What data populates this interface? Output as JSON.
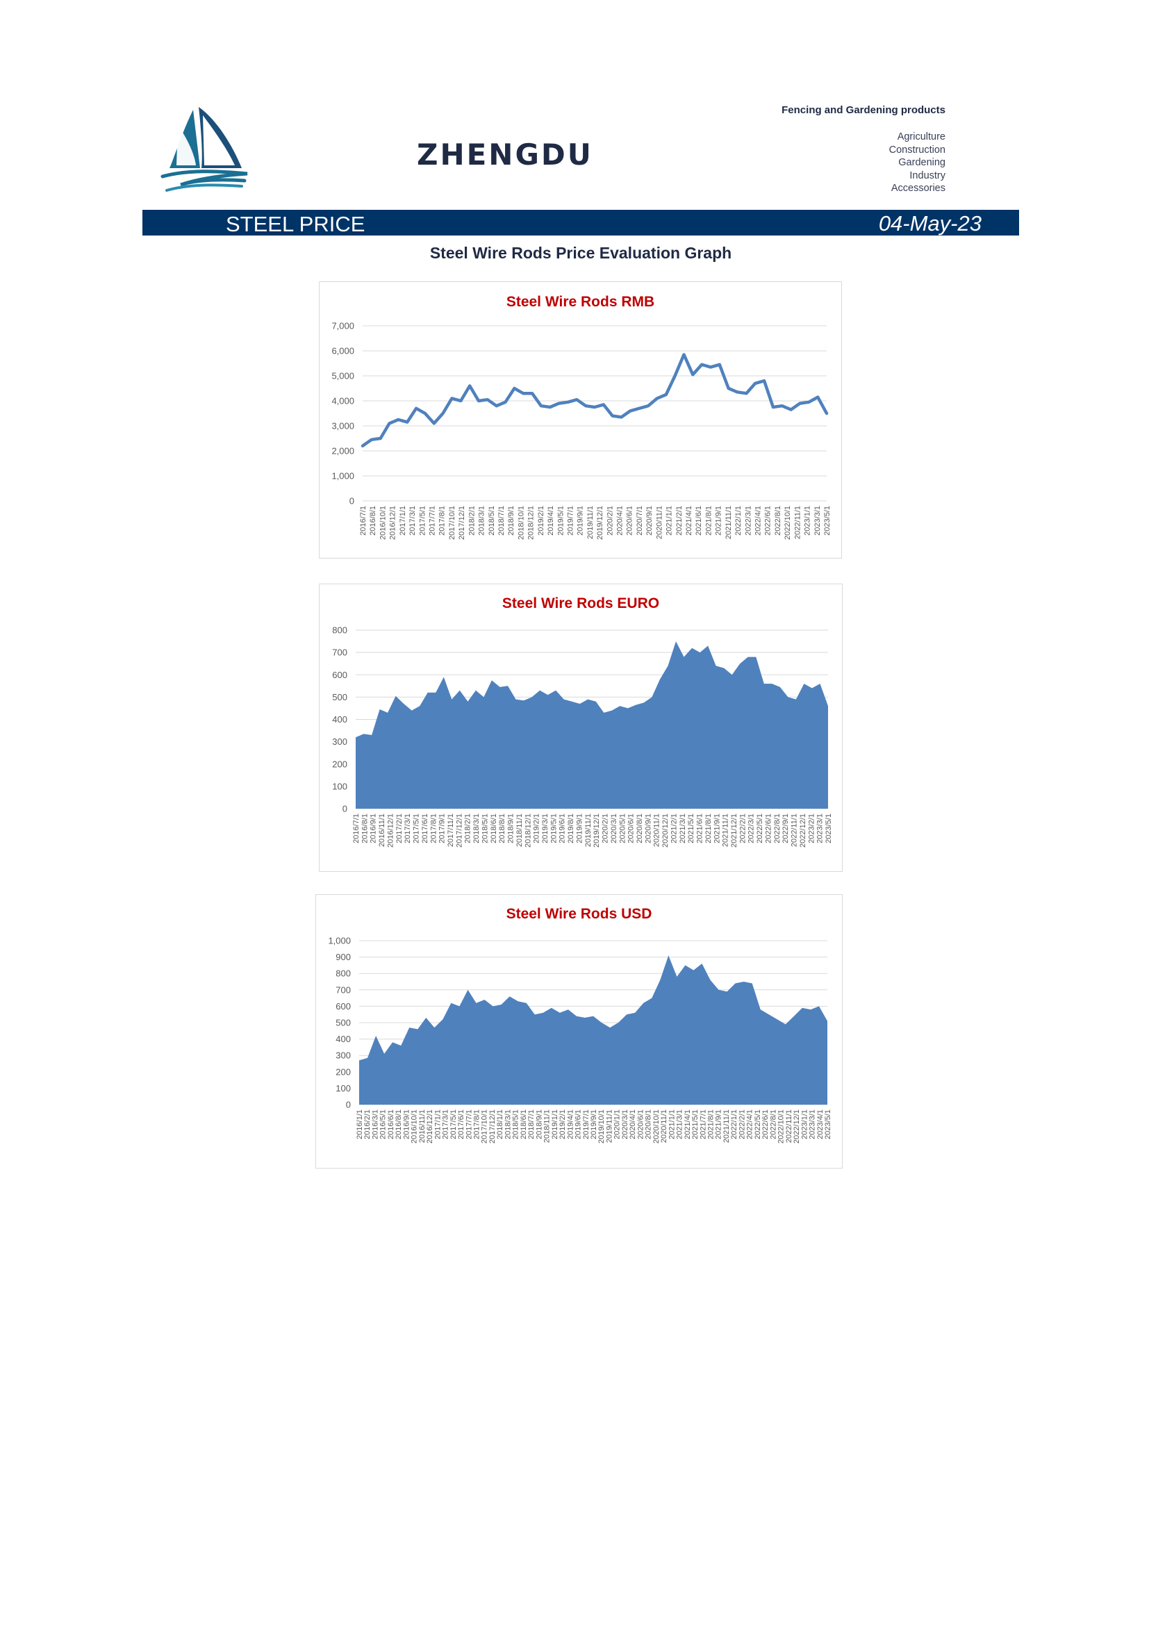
{
  "header": {
    "brand": "ZHENGDU",
    "tagline": "Fencing and Gardening products",
    "categories": [
      "Agriculture",
      "Construction",
      "Gardening",
      "Industry",
      "Accessories"
    ],
    "logo_icon": "sailboat-logo-icon"
  },
  "banner": {
    "title": "STEEL PRICE",
    "date": "04-May-23",
    "color": "#003366"
  },
  "page": {
    "graph_title": "Steel Wire Rods Price Evaluation Graph"
  },
  "colors": {
    "series": "#4f81bd",
    "title": "#c00000",
    "grid": "#d9d9d9"
  },
  "chart_data": [
    {
      "type": "line",
      "title": "Steel Wire Rods RMB",
      "ylim": [
        0,
        7000
      ],
      "yticks": [
        "0",
        "1,000",
        "2,000",
        "3,000",
        "4,000",
        "5,000",
        "6,000",
        "7,000"
      ],
      "grid": true,
      "x_start": "2016/7",
      "x_end": "2023/5",
      "x_ticks": [
        "2016/7/1",
        "2016/8/1",
        "2016/10/1",
        "2016/12/1",
        "2017/1/1",
        "2017/3/1",
        "2017/5/1",
        "2017/7/1",
        "2017/8/1",
        "2017/10/1",
        "2017/12/1",
        "2018/2/1",
        "2018/3/1",
        "2018/5/1",
        "2018/7/1",
        "2018/9/1",
        "2018/10/1",
        "2018/12/1",
        "2019/2/1",
        "2019/4/1",
        "2019/5/1",
        "2019/7/1",
        "2019/9/1",
        "2019/11/1",
        "2019/12/1",
        "2020/2/1",
        "2020/4/1",
        "2020/6/1",
        "2020/7/1",
        "2020/9/1",
        "2020/11/1",
        "2021/1/1",
        "2021/2/1",
        "2021/4/1",
        "2021/6/1",
        "2021/8/1",
        "2021/9/1",
        "2021/11/1",
        "2022/1/1",
        "2022/3/1",
        "2022/4/1",
        "2022/6/1",
        "2022/8/1",
        "2022/10/1",
        "2022/11/1",
        "2023/1/1",
        "2023/3/1",
        "2023/5/1"
      ],
      "values": [
        2200,
        2450,
        2500,
        3100,
        3250,
        3150,
        3700,
        3500,
        3100,
        3500,
        4100,
        4000,
        4600,
        4000,
        4050,
        3800,
        3950,
        4500,
        4300,
        4300,
        3800,
        3750,
        3900,
        3950,
        4050,
        3800,
        3750,
        3850,
        3400,
        3350,
        3600,
        3700,
        3800,
        4100,
        4250,
        5000,
        5850,
        5050,
        5450,
        5350,
        5450,
        4500,
        4350,
        4300,
        4700,
        4800,
        3750,
        3800,
        3650,
        3900,
        3950,
        4150,
        3500
      ]
    },
    {
      "type": "area",
      "title": "Steel Wire Rods EURO",
      "ylim": [
        0,
        800
      ],
      "yticks": [
        "0",
        "100",
        "200",
        "300",
        "400",
        "500",
        "600",
        "700",
        "800"
      ],
      "grid": true,
      "x_start": "2016/7",
      "x_end": "2023/5",
      "x_ticks": [
        "2016/7/1",
        "2016/8/1",
        "2016/9/1",
        "2016/11/1",
        "2016/12/1",
        "2017/2/1",
        "2017/3/1",
        "2017/5/1",
        "2017/6/1",
        "2017/8/1",
        "2017/9/1",
        "2017/11/1",
        "2017/12/1",
        "2018/2/1",
        "2018/3/1",
        "2018/5/1",
        "2018/6/1",
        "2018/8/1",
        "2018/9/1",
        "2018/11/1",
        "2018/12/1",
        "2019/2/1",
        "2019/3/1",
        "2019/5/1",
        "2019/6/1",
        "2019/8/1",
        "2019/9/1",
        "2019/11/1",
        "2019/12/1",
        "2020/2/1",
        "2020/3/1",
        "2020/5/1",
        "2020/6/1",
        "2020/8/1",
        "2020/9/1",
        "2020/11/1",
        "2020/12/1",
        "2021/2/1",
        "2021/3/1",
        "2021/5/1",
        "2021/6/1",
        "2021/8/1",
        "2021/9/1",
        "2021/11/1",
        "2021/12/1",
        "2022/2/1",
        "2022/3/1",
        "2022/5/1",
        "2022/6/1",
        "2022/8/1",
        "2022/9/1",
        "2022/11/1",
        "2022/12/1",
        "2023/2/1",
        "2023/3/1",
        "2023/5/1"
      ],
      "values": [
        320,
        335,
        330,
        445,
        430,
        505,
        470,
        440,
        460,
        520,
        520,
        590,
        490,
        530,
        480,
        530,
        500,
        575,
        545,
        550,
        490,
        485,
        500,
        530,
        510,
        530,
        490,
        480,
        470,
        490,
        480,
        430,
        440,
        460,
        450,
        465,
        475,
        500,
        580,
        640,
        750,
        680,
        720,
        700,
        730,
        640,
        630,
        600,
        650,
        680,
        680,
        560,
        560,
        545,
        500,
        490,
        560,
        540,
        560,
        460
      ]
    },
    {
      "type": "area",
      "title": "Steel Wire Rods USD",
      "ylim": [
        0,
        1000
      ],
      "yticks": [
        "0",
        "100",
        "200",
        "300",
        "400",
        "500",
        "600",
        "700",
        "800",
        "900",
        "1,000"
      ],
      "grid": true,
      "x_start": "2016/1",
      "x_end": "2023/5",
      "x_ticks": [
        "2016/1/1",
        "2016/2/1",
        "2016/3/1",
        "2016/5/1",
        "2016/6/1",
        "2016/8/1",
        "2016/9/1",
        "2016/10/1",
        "2016/11/1",
        "2016/12/1",
        "2017/1/1",
        "2017/3/1",
        "2017/5/1",
        "2017/6/1",
        "2017/7/1",
        "2017/8/1",
        "2017/10/1",
        "2017/12/1",
        "2018/1/1",
        "2018/3/1",
        "2018/5/1",
        "2018/6/1",
        "2018/7/1",
        "2018/9/1",
        "2018/11/1",
        "2019/1/1",
        "2019/2/1",
        "2019/4/1",
        "2019/6/1",
        "2019/7/1",
        "2019/9/1",
        "2019/10/1",
        "2019/11/1",
        "2020/1/1",
        "2020/3/1",
        "2020/4/1",
        "2020/6/1",
        "2020/8/1",
        "2020/10/1",
        "2020/11/1",
        "2021/1/1",
        "2021/3/1",
        "2021/4/1",
        "2021/5/1",
        "2021/7/1",
        "2021/8/1",
        "2021/9/1",
        "2021/11/1",
        "2022/1/1",
        "2022/2/1",
        "2022/4/1",
        "2022/5/1",
        "2022/6/1",
        "2022/8/1",
        "2022/10/1",
        "2022/11/1",
        "2022/12/1",
        "2023/1/1",
        "2023/3/1",
        "2023/4/1",
        "2023/5/1"
      ],
      "values": [
        270,
        285,
        420,
        310,
        380,
        360,
        470,
        460,
        530,
        470,
        520,
        620,
        600,
        700,
        620,
        640,
        600,
        610,
        660,
        630,
        620,
        550,
        560,
        590,
        560,
        580,
        540,
        530,
        540,
        500,
        470,
        500,
        550,
        560,
        620,
        650,
        760,
        910,
        780,
        850,
        820,
        860,
        760,
        700,
        690,
        740,
        750,
        740,
        580,
        550,
        520,
        490,
        540,
        590,
        580,
        600,
        510
      ]
    }
  ]
}
